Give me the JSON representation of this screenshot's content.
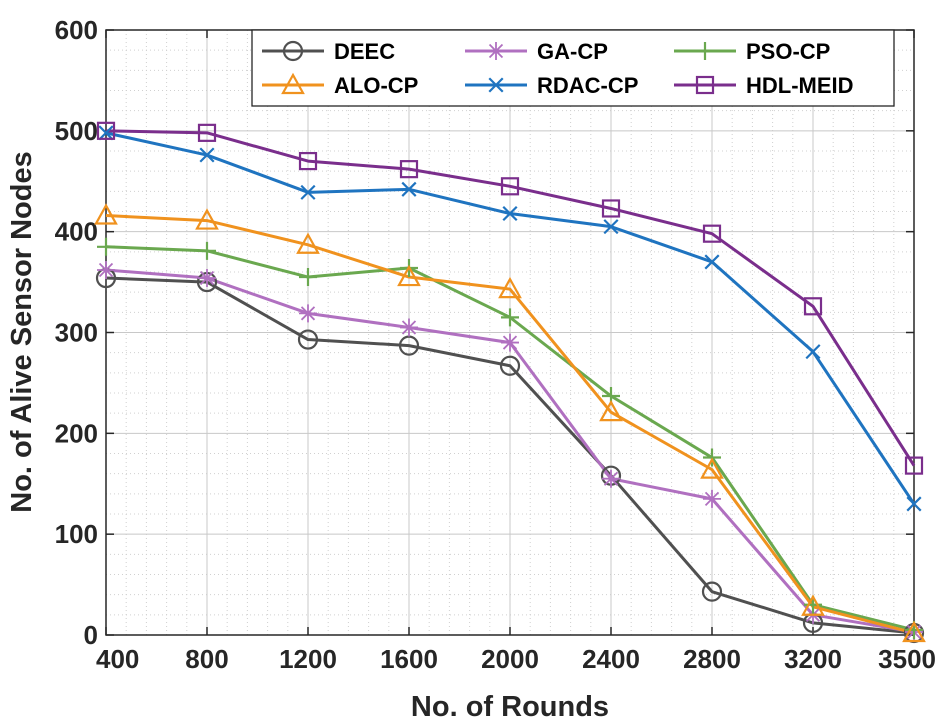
{
  "chart_data": {
    "type": "line",
    "title": "",
    "xlabel": "No. of Rounds",
    "ylabel": "No. of Alive Sensor Nodes",
    "categories": [
      "400",
      "800",
      "1200",
      "1600",
      "2000",
      "2400",
      "2800",
      "3200",
      "3500"
    ],
    "ylim": [
      0,
      600
    ],
    "yticks": [
      "0",
      "100",
      "200",
      "300",
      "400",
      "500",
      "600"
    ],
    "grid": true,
    "legend_position": "top-right",
    "series": [
      {
        "name": "DEEC",
        "color": "#505050",
        "marker": "circle",
        "values": [
          354,
          350,
          293,
          287,
          267,
          158,
          43,
          12,
          2
        ]
      },
      {
        "name": "GA-CP",
        "color": "#b070c0",
        "marker": "asterisk",
        "values": [
          362,
          354,
          319,
          305,
          290,
          155,
          135,
          20,
          3
        ]
      },
      {
        "name": "PSO-CP",
        "color": "#6aa84f",
        "marker": "plus",
        "values": [
          385,
          381,
          355,
          364,
          315,
          237,
          176,
          30,
          5
        ]
      },
      {
        "name": "ALO-CP",
        "color": "#f0921e",
        "marker": "triangle",
        "values": [
          416,
          411,
          387,
          355,
          343,
          221,
          164,
          28,
          2
        ]
      },
      {
        "name": "RDAC-CP",
        "color": "#1f74c0",
        "marker": "x",
        "values": [
          498,
          476,
          439,
          442,
          418,
          405,
          370,
          281,
          130
        ]
      },
      {
        "name": "HDL-MEID",
        "color": "#7a2e8c",
        "marker": "square",
        "values": [
          500,
          498,
          470,
          462,
          445,
          423,
          398,
          326,
          168
        ]
      }
    ]
  }
}
